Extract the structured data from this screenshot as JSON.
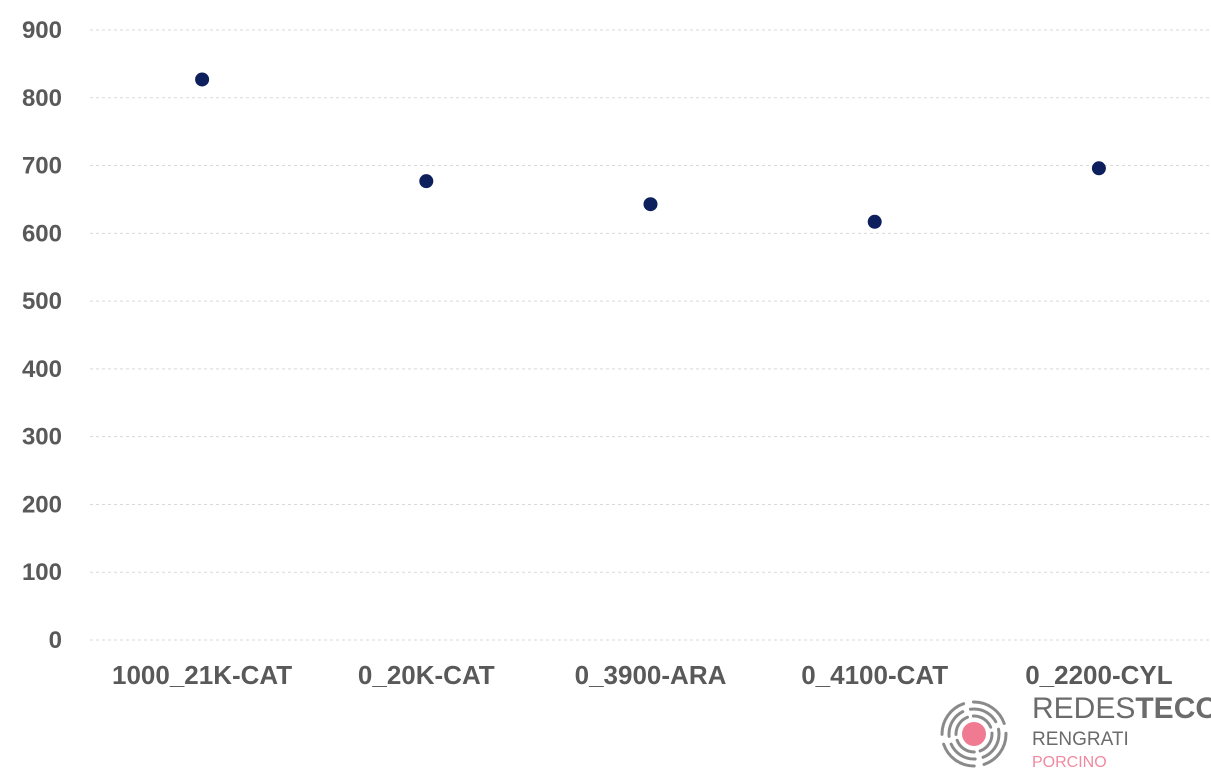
{
  "chart_data": {
    "type": "scatter",
    "title": "",
    "xlabel": "",
    "ylabel": "",
    "categories": [
      "1000_21K-CAT",
      "0_20K-CAT",
      "0_3900-ARA",
      "0_4100-CAT",
      "0_2200-CYL"
    ],
    "values": [
      827,
      677,
      643,
      617,
      696
    ],
    "ylim": [
      0,
      900
    ],
    "yticks": [
      0,
      100,
      200,
      300,
      400,
      500,
      600,
      700,
      800,
      900
    ],
    "grid": true,
    "legend": "none",
    "marker_color": "#0d1f5c"
  },
  "logo": {
    "brand_regular": "REDES",
    "brand_bold": "TECO",
    "line2": "RENGRATI",
    "line3": "PORCINO"
  }
}
